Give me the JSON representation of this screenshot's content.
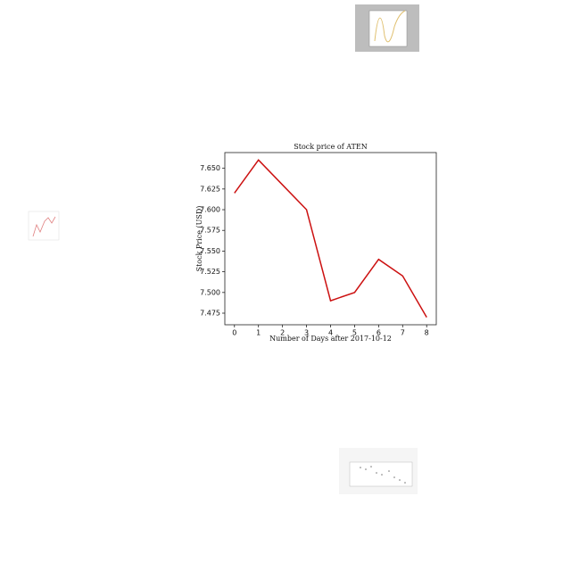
{
  "chart_data": {
    "type": "line",
    "title": "Stock price of ATEN",
    "x_label": "Number of Days after 2017-10-12",
    "y_label": "Stock Price (USD)",
    "x": [
      0,
      1,
      2,
      3,
      4,
      5,
      6,
      7,
      8
    ],
    "series": [
      {
        "name": "ATEN",
        "color": "#cc1111",
        "values": [
          7.62,
          7.66,
          7.63,
          7.6,
          7.49,
          7.5,
          7.54,
          7.52,
          7.47
        ]
      }
    ],
    "xlim": [
      -0.4,
      8.4
    ],
    "xticks": [
      0,
      1,
      2,
      3,
      4,
      5,
      6,
      7,
      8
    ],
    "ylim": [
      7.461,
      7.669
    ],
    "yticks": [
      7.475,
      {
        "value": 7.5,
        "label": "7.500"
      },
      7.525,
      {
        "value": 7.55,
        "label": "7.550"
      },
      7.575,
      {
        "value": 7.6,
        "label": "7.600"
      },
      7.625,
      {
        "value": 7.65,
        "label": "7.650"
      }
    ],
    "grid": false
  }
}
